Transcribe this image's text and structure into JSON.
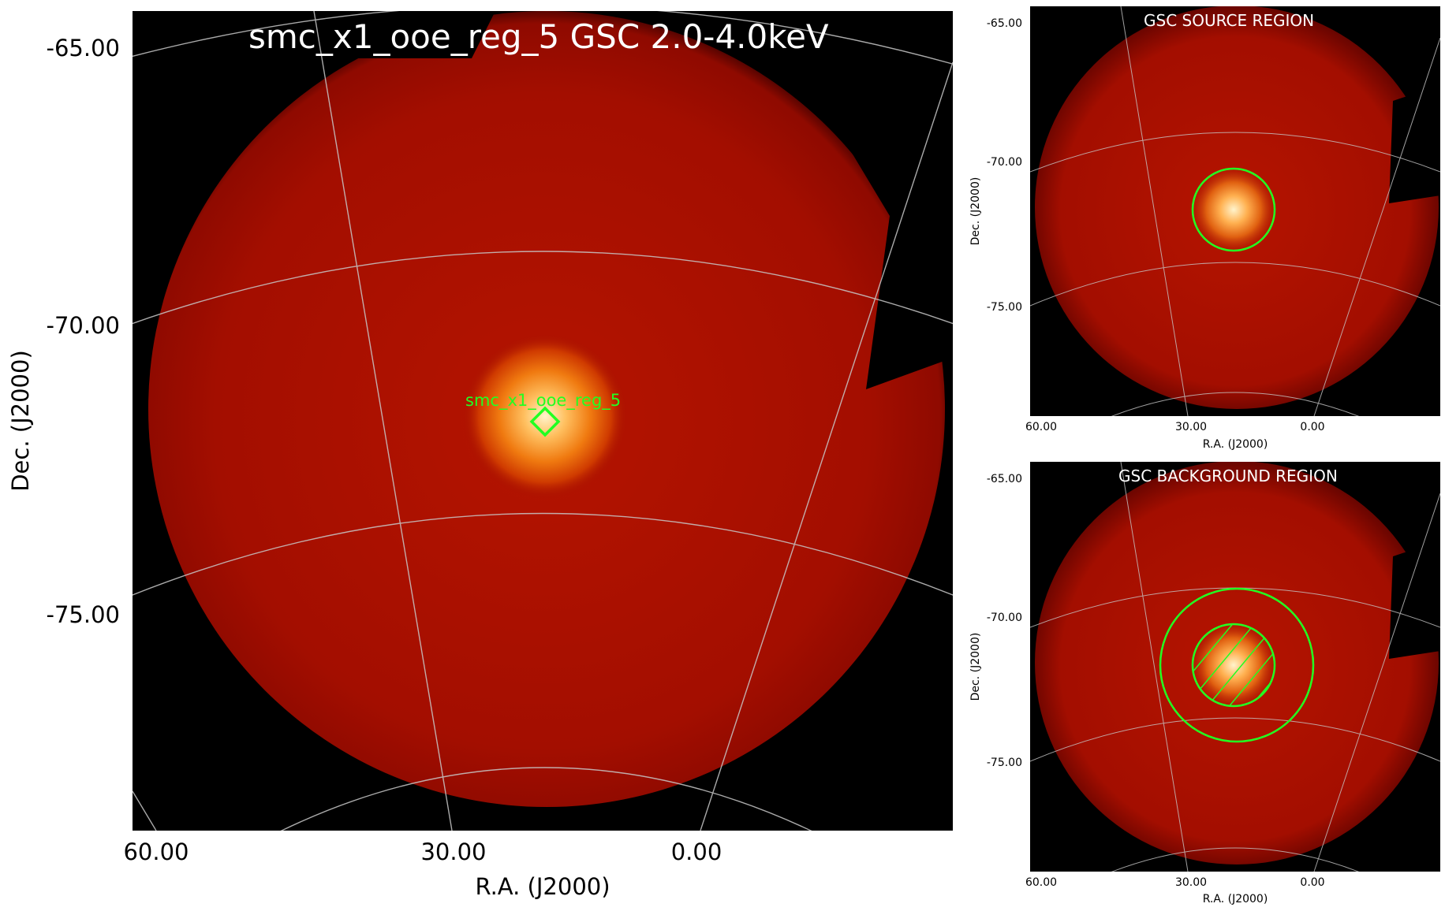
{
  "main": {
    "title": "smc_x1_ooe_reg_5 GSC 2.0-4.0keV",
    "source_label": "smc_x1_ooe_reg_5",
    "xlabel": "R.A. (J2000)",
    "ylabel": "Dec. (J2000)",
    "x_ticks": [
      "60.00",
      "30.00",
      "0.00"
    ],
    "y_ticks": [
      "-65.00",
      "-70.00",
      "-75.00"
    ]
  },
  "source_panel": {
    "title": "GSC SOURCE REGION",
    "xlabel": "R.A. (J2000)",
    "ylabel": "Dec. (J2000)",
    "x_ticks": [
      "60.00",
      "30.00",
      "0.00"
    ],
    "y_ticks": [
      "-65.00",
      "-70.00",
      "-75.00"
    ]
  },
  "background_panel": {
    "title": "GSC BACKGROUND REGION",
    "xlabel": "R.A. (J2000)",
    "ylabel": "Dec. (J2000)",
    "x_ticks": [
      "60.00",
      "30.00",
      "0.00"
    ],
    "y_ticks": [
      "-65.00",
      "-70.00",
      "-75.00"
    ]
  },
  "colors": {
    "image_background": "#000000",
    "field": "#a80f00",
    "source_core": "#fff0c0",
    "region": "#22ff22",
    "grid": "#c8c8c8",
    "title_text": "#ffffff"
  }
}
